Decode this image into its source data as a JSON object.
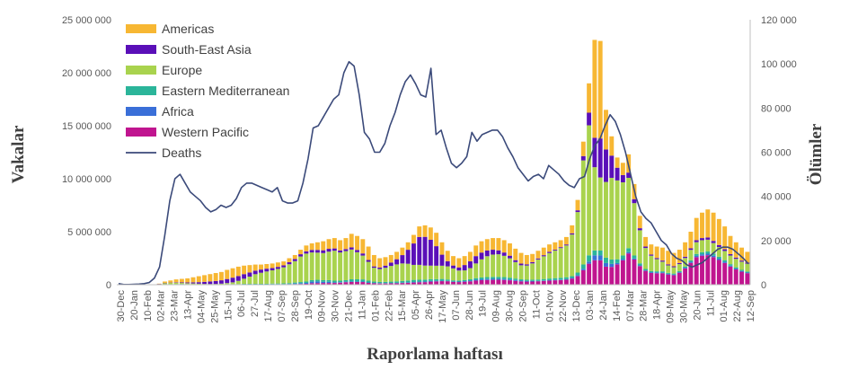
{
  "chart_data": {
    "type": "bar",
    "stacked": true,
    "secondary_series_type": "line",
    "xlabel": "Raporlama haftası",
    "ylabel_left": "Vakalar",
    "ylabel_right": "Ölümler",
    "ylim_left": [
      0,
      25000000
    ],
    "ylim_right": [
      0,
      120000
    ],
    "yticks_left": [
      "0",
      "5 000 000",
      "10 000 000",
      "15 000 000",
      "20 000 000",
      "25 000 000"
    ],
    "yticks_right": [
      "0",
      "20 000",
      "40 000",
      "60 000",
      "80 000",
      "100 000",
      "120 000"
    ],
    "grid": false,
    "legend_position": "top-left",
    "x_tick_labels": [
      "30-Dec",
      "20-Jan",
      "10-Feb",
      "02-Mar",
      "23-Mar",
      "13-Apr",
      "04-May",
      "25-May",
      "15-Jun",
      "06-Jul",
      "27-Jul",
      "17-Aug",
      "07-Sep",
      "28-Sep",
      "19-Oct",
      "09-Nov",
      "30-Nov",
      "21-Dec",
      "11-Jan",
      "01-Feb",
      "22-Feb",
      "15-Mar",
      "05-Apr",
      "26-Apr",
      "17-May",
      "07-Jun",
      "28-Jun",
      "19-Jul",
      "09-Aug",
      "30-Aug",
      "20-Sep",
      "11-Oct",
      "01-Nov",
      "22-Nov",
      "13-Dec",
      "03-Jan",
      "24-Jan",
      "14-Feb",
      "07-Mar",
      "28-Mar",
      "18-Apr",
      "09-May",
      "30-May",
      "20-Jun",
      "11-Jul",
      "01-Aug",
      "22-Aug",
      "12-Sep"
    ],
    "x_tick_every": 3,
    "totals_millions": [
      0,
      0,
      0,
      0,
      0,
      0.01,
      0.03,
      0.1,
      0.3,
      0.4,
      0.5,
      0.55,
      0.6,
      0.7,
      0.8,
      0.9,
      1.0,
      1.1,
      1.2,
      1.4,
      1.55,
      1.7,
      1.8,
      1.85,
      1.9,
      1.9,
      1.95,
      2.0,
      2.1,
      2.2,
      2.5,
      2.8,
      3.3,
      3.7,
      3.9,
      4.0,
      4.1,
      4.3,
      4.4,
      4.2,
      4.4,
      4.8,
      4.6,
      4.3,
      3.6,
      2.8,
      2.5,
      2.6,
      2.8,
      3.1,
      3.5,
      4.0,
      4.7,
      5.5,
      5.6,
      5.4,
      4.9,
      4.0,
      3.2,
      2.7,
      2.5,
      2.7,
      3.1,
      3.7,
      4.1,
      4.3,
      4.4,
      4.4,
      4.2,
      3.9,
      3.4,
      3.0,
      2.8,
      2.9,
      3.2,
      3.5,
      3.8,
      4.0,
      4.2,
      4.5,
      5.6,
      8.0,
      13.5,
      19.0,
      23.1,
      23.0,
      16.5,
      14.0,
      12.0,
      11.5,
      12.3,
      9.5,
      6.5,
      4.5,
      3.8,
      3.6,
      3.5,
      3.2,
      3.0,
      3.3,
      4.0,
      5.0,
      6.3,
      6.8,
      7.1,
      6.8,
      6.2,
      5.5,
      4.6,
      4.0,
      3.5,
      3.1
    ],
    "categories_series": [
      {
        "name": "Americas",
        "color": "#F7B733",
        "share": [
          0,
          0,
          0,
          0,
          0,
          0.35,
          0.3,
          0.3,
          0.45,
          0.5,
          0.55,
          0.6,
          0.65,
          0.68,
          0.7,
          0.7,
          0.72,
          0.72,
          0.7,
          0.68,
          0.64,
          0.58,
          0.5,
          0.43,
          0.35,
          0.28,
          0.25,
          0.24,
          0.22,
          0.18,
          0.15,
          0.13,
          0.12,
          0.13,
          0.13,
          0.14,
          0.16,
          0.17,
          0.18,
          0.2,
          0.22,
          0.25,
          0.26,
          0.27,
          0.3,
          0.33,
          0.3,
          0.27,
          0.22,
          0.2,
          0.18,
          0.16,
          0.16,
          0.17,
          0.18,
          0.2,
          0.24,
          0.28,
          0.3,
          0.33,
          0.35,
          0.3,
          0.28,
          0.26,
          0.25,
          0.24,
          0.24,
          0.25,
          0.26,
          0.28,
          0.3,
          0.32,
          0.3,
          0.26,
          0.22,
          0.2,
          0.18,
          0.17,
          0.15,
          0.15,
          0.13,
          0.12,
          0.1,
          0.14,
          0.4,
          0.4,
          0.22,
          0.13,
          0.08,
          0.1,
          0.14,
          0.15,
          0.18,
          0.2,
          0.25,
          0.3,
          0.35,
          0.4,
          0.42,
          0.38,
          0.34,
          0.32,
          0.34,
          0.36,
          0.38,
          0.4,
          0.4,
          0.4,
          0.38,
          0.36,
          0.35,
          0.33
        ]
      },
      {
        "name": "South-East Asia",
        "color": "#5A0FB8",
        "share": [
          0,
          0,
          0,
          0,
          0,
          0.05,
          0.05,
          0.05,
          0.05,
          0.06,
          0.08,
          0.1,
          0.12,
          0.15,
          0.18,
          0.22,
          0.25,
          0.27,
          0.28,
          0.3,
          0.32,
          0.3,
          0.27,
          0.24,
          0.2,
          0.18,
          0.15,
          0.12,
          0.1,
          0.09,
          0.08,
          0.07,
          0.06,
          0.05,
          0.05,
          0.05,
          0.05,
          0.05,
          0.04,
          0.04,
          0.04,
          0.04,
          0.04,
          0.04,
          0.04,
          0.04,
          0.05,
          0.07,
          0.1,
          0.14,
          0.2,
          0.3,
          0.4,
          0.45,
          0.45,
          0.42,
          0.35,
          0.25,
          0.15,
          0.1,
          0.12,
          0.18,
          0.2,
          0.18,
          0.15,
          0.12,
          0.1,
          0.08,
          0.07,
          0.06,
          0.05,
          0.05,
          0.04,
          0.04,
          0.03,
          0.03,
          0.03,
          0.02,
          0.02,
          0.02,
          0.02,
          0.02,
          0.03,
          0.06,
          0.12,
          0.16,
          0.18,
          0.15,
          0.1,
          0.06,
          0.04,
          0.04,
          0.03,
          0.03,
          0.03,
          0.03,
          0.03,
          0.03,
          0.03,
          0.03,
          0.03,
          0.03,
          0.03,
          0.03,
          0.03,
          0.03,
          0.03,
          0.03,
          0.03,
          0.03,
          0.03,
          0.03
        ]
      },
      {
        "name": "Europe",
        "color": "#A9D34E",
        "share": [
          0,
          0,
          0,
          0,
          0,
          0.45,
          0.55,
          0.55,
          0.4,
          0.32,
          0.25,
          0.18,
          0.14,
          0.1,
          0.07,
          0.05,
          0.04,
          0.04,
          0.06,
          0.08,
          0.12,
          0.2,
          0.3,
          0.42,
          0.55,
          0.62,
          0.66,
          0.7,
          0.72,
          0.73,
          0.72,
          0.7,
          0.68,
          0.62,
          0.55,
          0.5,
          0.48,
          0.5,
          0.52,
          0.55,
          0.58,
          0.55,
          0.5,
          0.45,
          0.42,
          0.4,
          0.42,
          0.45,
          0.46,
          0.46,
          0.42,
          0.36,
          0.28,
          0.24,
          0.22,
          0.22,
          0.24,
          0.3,
          0.38,
          0.42,
          0.38,
          0.32,
          0.33,
          0.36,
          0.4,
          0.44,
          0.46,
          0.46,
          0.45,
          0.44,
          0.43,
          0.42,
          0.46,
          0.52,
          0.58,
          0.6,
          0.62,
          0.63,
          0.64,
          0.64,
          0.68,
          0.7,
          0.72,
          0.62,
          0.34,
          0.3,
          0.42,
          0.55,
          0.62,
          0.6,
          0.54,
          0.52,
          0.48,
          0.44,
          0.38,
          0.32,
          0.26,
          0.22,
          0.2,
          0.2,
          0.2,
          0.2,
          0.18,
          0.17,
          0.16,
          0.15,
          0.15,
          0.16,
          0.18,
          0.2,
          0.22,
          0.24
        ]
      },
      {
        "name": "Eastern Mediterranean",
        "color": "#2BB59A",
        "share": [
          0,
          0,
          0,
          0,
          0,
          0.05,
          0.05,
          0.05,
          0.05,
          0.06,
          0.06,
          0.06,
          0.05,
          0.04,
          0.03,
          0.02,
          0.02,
          0.02,
          0.02,
          0.02,
          0.02,
          0.02,
          0.03,
          0.03,
          0.03,
          0.03,
          0.03,
          0.03,
          0.03,
          0.03,
          0.03,
          0.03,
          0.03,
          0.03,
          0.03,
          0.03,
          0.03,
          0.03,
          0.03,
          0.03,
          0.03,
          0.04,
          0.04,
          0.04,
          0.04,
          0.04,
          0.04,
          0.04,
          0.04,
          0.04,
          0.04,
          0.04,
          0.04,
          0.03,
          0.03,
          0.03,
          0.03,
          0.04,
          0.04,
          0.04,
          0.04,
          0.04,
          0.04,
          0.04,
          0.04,
          0.04,
          0.04,
          0.04,
          0.04,
          0.04,
          0.04,
          0.04,
          0.04,
          0.04,
          0.04,
          0.04,
          0.04,
          0.04,
          0.04,
          0.04,
          0.03,
          0.03,
          0.03,
          0.03,
          0.02,
          0.02,
          0.03,
          0.03,
          0.03,
          0.03,
          0.03,
          0.03,
          0.03,
          0.03,
          0.03,
          0.03,
          0.03,
          0.03,
          0.03,
          0.03,
          0.03,
          0.03,
          0.03,
          0.03,
          0.03,
          0.03,
          0.03,
          0.03,
          0.03,
          0.03,
          0.03,
          0.03
        ]
      },
      {
        "name": "Africa",
        "color": "#3A6FD8",
        "share": [
          0,
          0,
          0,
          0,
          0,
          0.05,
          0.03,
          0.03,
          0.03,
          0.04,
          0.04,
          0.04,
          0.03,
          0.02,
          0.01,
          0.01,
          0.01,
          0.01,
          0.01,
          0.01,
          0.01,
          0.01,
          0.01,
          0.01,
          0.01,
          0.01,
          0.01,
          0.01,
          0.01,
          0.01,
          0.01,
          0.02,
          0.02,
          0.02,
          0.03,
          0.03,
          0.02,
          0.02,
          0.01,
          0.01,
          0.01,
          0.01,
          0.01,
          0.01,
          0.01,
          0.01,
          0.01,
          0.01,
          0.01,
          0.01,
          0.01,
          0.01,
          0.01,
          0.01,
          0.01,
          0.01,
          0.01,
          0.01,
          0.01,
          0.01,
          0.02,
          0.02,
          0.02,
          0.02,
          0.02,
          0.02,
          0.02,
          0.02,
          0.02,
          0.02,
          0.02,
          0.02,
          0.02,
          0.02,
          0.01,
          0.01,
          0.01,
          0.01,
          0.01,
          0.01,
          0.01,
          0.01,
          0.01,
          0.01,
          0.02,
          0.02,
          0.02,
          0.02,
          0.01,
          0.01,
          0.01,
          0.01,
          0.01,
          0.01,
          0.02,
          0.02,
          0.02,
          0.02,
          0.02,
          0.02,
          0.02,
          0.02,
          0.02,
          0.02,
          0.02,
          0.02,
          0.02,
          0.02,
          0.02,
          0.02,
          0.02,
          0.02
        ]
      },
      {
        "name": "Western Pacific",
        "color": "#C0158F",
        "share": [
          1,
          1,
          1,
          1,
          1,
          0.05,
          0.02,
          0.02,
          0.02,
          0.02,
          0.02,
          0.02,
          0.01,
          0.01,
          0.01,
          0.0,
          0.0,
          0.0,
          0.0,
          0.01,
          0.01,
          0.01,
          0.01,
          0.01,
          0.01,
          0.01,
          0.01,
          0.02,
          0.02,
          0.02,
          0.02,
          0.02,
          0.02,
          0.02,
          0.03,
          0.03,
          0.03,
          0.03,
          0.03,
          0.04,
          0.05,
          0.05,
          0.05,
          0.05,
          0.04,
          0.04,
          0.04,
          0.04,
          0.04,
          0.04,
          0.04,
          0.04,
          0.04,
          0.04,
          0.04,
          0.05,
          0.06,
          0.08,
          0.1,
          0.1,
          0.1,
          0.1,
          0.1,
          0.1,
          0.1,
          0.1,
          0.1,
          0.1,
          0.1,
          0.1,
          0.1,
          0.1,
          0.1,
          0.1,
          0.1,
          0.1,
          0.1,
          0.1,
          0.1,
          0.1,
          0.1,
          0.1,
          0.1,
          0.1,
          0.1,
          0.1,
          0.1,
          0.12,
          0.16,
          0.2,
          0.24,
          0.25,
          0.27,
          0.29,
          0.29,
          0.3,
          0.31,
          0.3,
          0.3,
          0.34,
          0.38,
          0.42,
          0.42,
          0.41,
          0.4,
          0.39,
          0.38,
          0.38,
          0.38,
          0.36,
          0.35,
          0.35
        ]
      }
    ],
    "deaths_series": {
      "name": "Deaths",
      "color": "#3B4A7A",
      "values_thousands": [
        0.5,
        0.1,
        0.1,
        0.2,
        0.3,
        0.5,
        1,
        3,
        8,
        22,
        38,
        48,
        50,
        46,
        42,
        40,
        38,
        35,
        33,
        34,
        36,
        35,
        36,
        39,
        44,
        46,
        46,
        45,
        44,
        43,
        42,
        44,
        38,
        37,
        37,
        38,
        46,
        57,
        71,
        72,
        76,
        80,
        84,
        86,
        96,
        101,
        99,
        86,
        69,
        66,
        60,
        60,
        64,
        72,
        78,
        86,
        92,
        95,
        91,
        86,
        85,
        98,
        68,
        70,
        62,
        55,
        53,
        55,
        58,
        69,
        65,
        68,
        69,
        70,
        70,
        67,
        62,
        58,
        53,
        50,
        47,
        49,
        50,
        48,
        54,
        52,
        50,
        47,
        45,
        44,
        48,
        49,
        57,
        63,
        66,
        72,
        77,
        74,
        68,
        60,
        50,
        40,
        33,
        30,
        28,
        24,
        20,
        18,
        14,
        12,
        11,
        9,
        8,
        9,
        10,
        12,
        14,
        16,
        17,
        17,
        16,
        14,
        12,
        9.5
      ],
      "values_note_end": 9.5
    }
  },
  "legend": [
    {
      "label": "Americas",
      "color": "#F7B733",
      "kind": "bar"
    },
    {
      "label": "South-East Asia",
      "color": "#5A0FB8",
      "kind": "bar"
    },
    {
      "label": "Europe",
      "color": "#A9D34E",
      "kind": "bar"
    },
    {
      "label": "Eastern Mediterranean",
      "color": "#2BB59A",
      "kind": "bar"
    },
    {
      "label": "Africa",
      "color": "#3A6FD8",
      "kind": "bar"
    },
    {
      "label": "Western Pacific",
      "color": "#C0158F",
      "kind": "bar"
    },
    {
      "label": "Deaths",
      "color": "#3B4A7A",
      "kind": "line"
    }
  ]
}
